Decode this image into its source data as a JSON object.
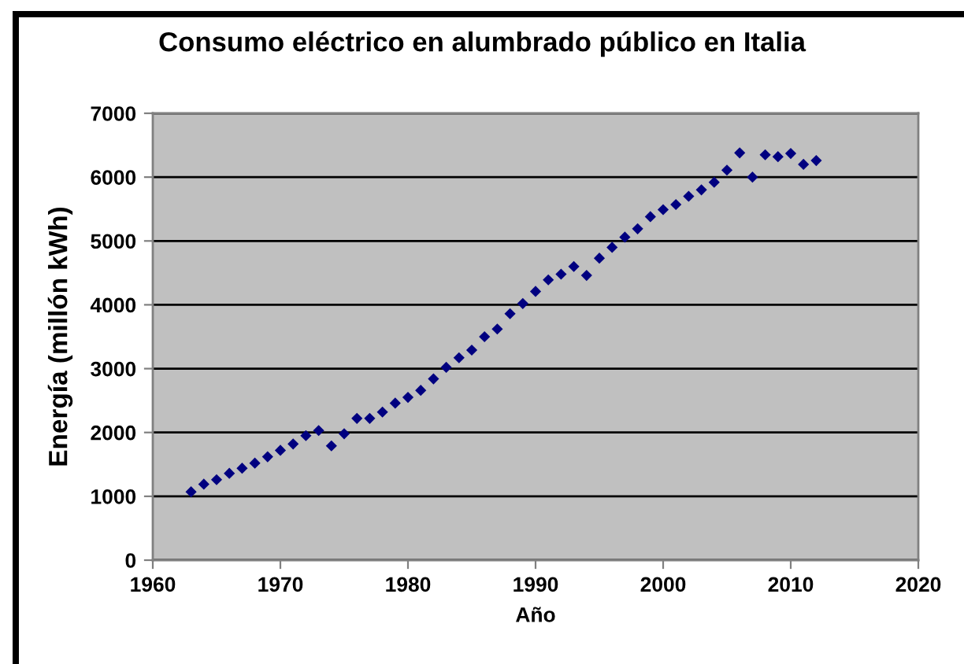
{
  "chart_data": {
    "type": "scatter",
    "title": "Consumo eléctrico en alumbrado público en Italia",
    "xlabel": "Año",
    "ylabel": "Energía (millón kWh)",
    "x": [
      1963,
      1964,
      1965,
      1966,
      1967,
      1968,
      1969,
      1970,
      1971,
      1972,
      1973,
      1974,
      1975,
      1976,
      1977,
      1978,
      1979,
      1980,
      1981,
      1982,
      1983,
      1984,
      1985,
      1986,
      1987,
      1988,
      1989,
      1990,
      1991,
      1992,
      1993,
      1994,
      1995,
      1996,
      1997,
      1998,
      1999,
      2000,
      2001,
      2002,
      2003,
      2004,
      2005,
      2006,
      2007,
      2008,
      2009,
      2010,
      2011,
      2012
    ],
    "values": [
      1070,
      1190,
      1260,
      1360,
      1440,
      1520,
      1620,
      1720,
      1820,
      1950,
      2030,
      1790,
      1980,
      2220,
      2220,
      2320,
      2460,
      2550,
      2660,
      2840,
      3020,
      3170,
      3290,
      3500,
      3620,
      3860,
      4020,
      4210,
      4390,
      4480,
      4600,
      4460,
      4730,
      4900,
      5060,
      5190,
      5380,
      5490,
      5570,
      5700,
      5800,
      5920,
      6110,
      6380,
      6000,
      6350,
      6320,
      6370,
      6200,
      6260
    ],
    "color": "#000080",
    "marker": "diamond",
    "xlim": [
      1960,
      2020
    ],
    "xticks": [
      1960,
      1970,
      1980,
      1990,
      2000,
      2010,
      2020
    ],
    "ylim": [
      0,
      7000
    ],
    "yticks": [
      0,
      1000,
      2000,
      3000,
      4000,
      5000,
      6000,
      7000
    ],
    "grid": "y"
  }
}
